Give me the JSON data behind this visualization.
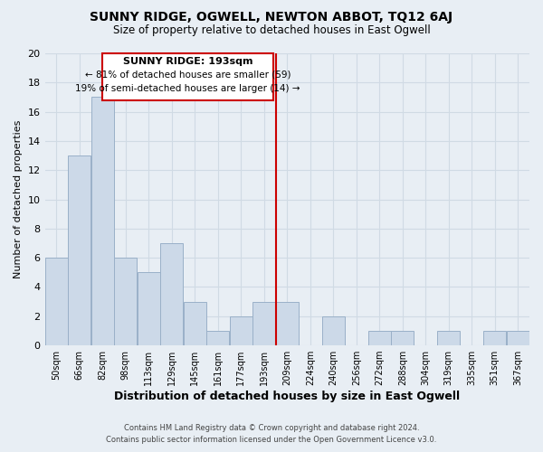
{
  "title": "SUNNY RIDGE, OGWELL, NEWTON ABBOT, TQ12 6AJ",
  "subtitle": "Size of property relative to detached houses in East Ogwell",
  "xlabel": "Distribution of detached houses by size in East Ogwell",
  "ylabel": "Number of detached properties",
  "bin_labels": [
    "50sqm",
    "66sqm",
    "82sqm",
    "98sqm",
    "113sqm",
    "129sqm",
    "145sqm",
    "161sqm",
    "177sqm",
    "193sqm",
    "209sqm",
    "224sqm",
    "240sqm",
    "256sqm",
    "272sqm",
    "288sqm",
    "304sqm",
    "319sqm",
    "335sqm",
    "351sqm",
    "367sqm"
  ],
  "bar_heights": [
    6,
    13,
    17,
    6,
    5,
    7,
    3,
    1,
    2,
    3,
    3,
    0,
    2,
    0,
    1,
    1,
    0,
    1,
    0,
    1,
    1
  ],
  "bar_color": "#ccd9e8",
  "bar_edge_color": "#9ab0c8",
  "highlight_line_color": "#cc0000",
  "ylim": [
    0,
    20
  ],
  "yticks": [
    0,
    2,
    4,
    6,
    8,
    10,
    12,
    14,
    16,
    18,
    20
  ],
  "annotation_title": "SUNNY RIDGE: 193sqm",
  "annotation_line1": "← 81% of detached houses are smaller (59)",
  "annotation_line2": "19% of semi-detached houses are larger (14) →",
  "annotation_box_color": "#ffffff",
  "annotation_box_edge": "#cc0000",
  "footer_line1": "Contains HM Land Registry data © Crown copyright and database right 2024.",
  "footer_line2": "Contains public sector information licensed under the Open Government Licence v3.0.",
  "bg_color": "#e8eef4",
  "grid_color": "#d0dae4"
}
